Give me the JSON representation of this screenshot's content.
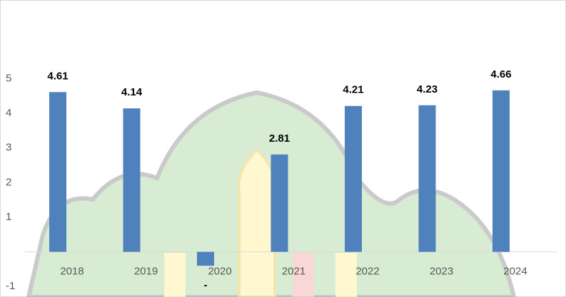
{
  "chart_data": {
    "type": "bar",
    "categories": [
      "2018",
      "2019",
      "2020",
      "2021",
      "2022",
      "2023",
      "2024"
    ],
    "values": [
      4.61,
      4.14,
      -0.4,
      2.81,
      4.21,
      4.23,
      4.66
    ],
    "value_labels": [
      "4.61",
      "4.14",
      "-",
      "2.81",
      "4.21",
      "4.23",
      "4.66"
    ],
    "color": "#4f81bd",
    "ylim": [
      -1.2,
      5.5
    ],
    "yticks": [
      -1,
      1,
      2,
      3,
      4,
      5
    ],
    "grid": false
  }
}
